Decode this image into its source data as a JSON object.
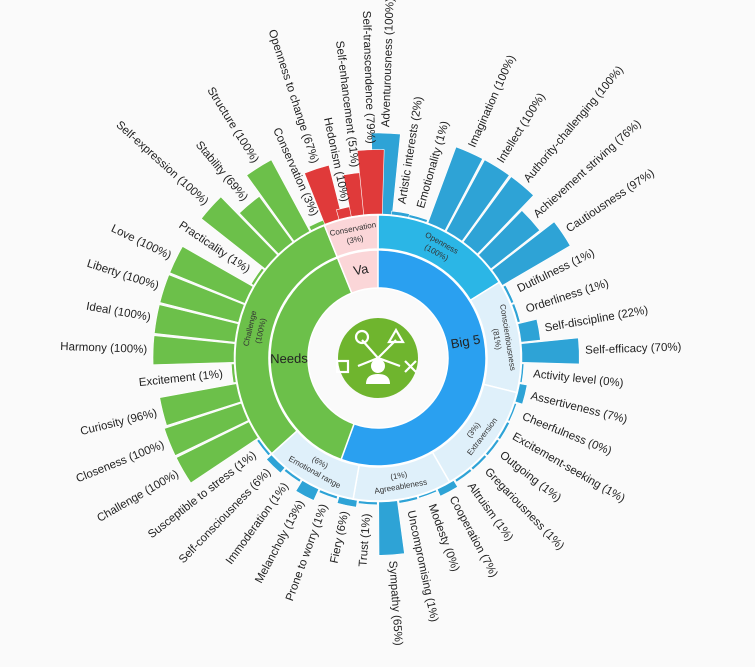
{
  "chart_data": {
    "type": "sunburst",
    "title": "",
    "colors": {
      "openness": "#2bb6e6",
      "big5_core": "#2aa0f0",
      "big5_light": "#dff0fa",
      "bar_blue": "#2ea3d6",
      "needs_green": "#6cc04a",
      "values_red": "#e03a3a",
      "values_pink": "#fbd6d8",
      "icon_bg": "#6fb52e",
      "icon_fg": "#ffffff",
      "divider": "#ffffff",
      "text": "#222222"
    },
    "core": [
      {
        "label": "Big 5",
        "start": -40,
        "end": 200,
        "color": "#2aa0f0"
      },
      {
        "label": "Needs",
        "start": 200,
        "end": 338,
        "color": "#6cc04a"
      },
      {
        "label": "Va",
        "start": 338,
        "end": 360,
        "color": "#fbd6d8"
      }
    ],
    "middle": [
      {
        "label": "Openness",
        "value": "(100%)",
        "start": 0,
        "end": 58,
        "color": "#2bb6e6"
      },
      {
        "label": "Conscientiousness",
        "value": "(81%)",
        "start": 58,
        "end": 104,
        "color": "#dff0fa"
      },
      {
        "label": "Extraversion",
        "value": "(3%)",
        "start": 104,
        "end": 150,
        "color": "#dff0fa"
      },
      {
        "label": "Agreeableness",
        "value": "(1%)",
        "start": 150,
        "end": 190,
        "color": "#dff0fa"
      },
      {
        "label": "Emotional range",
        "value": "(6%)",
        "start": 190,
        "end": 228,
        "color": "#dff0fa"
      },
      {
        "label": "Challenge",
        "value": "(100%)",
        "start": 228,
        "end": 338,
        "color": "#6cc04a"
      },
      {
        "label": "Conservation",
        "value": "(3%)",
        "start": 338,
        "end": 360,
        "color": "#fbd6d8"
      }
    ],
    "traits": [
      {
        "label": "Adventurousness (100%)",
        "value": 100,
        "angle": 2
      },
      {
        "label": "Artistic interests (2%)",
        "value": 2,
        "angle": 9
      },
      {
        "label": "Emotionality (1%)",
        "value": 1,
        "angle": 16
      },
      {
        "label": "Imagination (100%)",
        "value": 100,
        "angle": 24
      },
      {
        "label": "Intellect (100%)",
        "value": 100,
        "angle": 32
      },
      {
        "label": "Authority-challenging (100%)",
        "value": 100,
        "angle": 40
      },
      {
        "label": "Achievement striving (76%)",
        "value": 76,
        "angle": 48
      },
      {
        "label": "Cautiousness (97%)",
        "value": 97,
        "angle": 56
      },
      {
        "label": "Dutifulness (1%)",
        "value": 1,
        "angle": 64
      },
      {
        "label": "Orderliness (1%)",
        "value": 1,
        "angle": 72
      },
      {
        "label": "Self-discipline (22%)",
        "value": 22,
        "angle": 80
      },
      {
        "label": "Self-efficacy (70%)",
        "value": 70,
        "angle": 88
      },
      {
        "label": "Activity level (0%)",
        "value": 0,
        "angle": 96
      },
      {
        "label": "Assertiveness (7%)",
        "value": 7,
        "angle": 104
      },
      {
        "label": "Cheerfulness (0%)",
        "value": 0,
        "angle": 112
      },
      {
        "label": "Excitement-seeking (1%)",
        "value": 1,
        "angle": 120
      },
      {
        "label": "Outgoing (1%)",
        "value": 1,
        "angle": 128
      },
      {
        "label": "Gregariousness (1%)",
        "value": 1,
        "angle": 136
      },
      {
        "label": "Altruism (1%)",
        "value": 1,
        "angle": 144
      },
      {
        "label": "Cooperation (7%)",
        "value": 7,
        "angle": 152
      },
      {
        "label": "Modesty (0%)",
        "value": 0,
        "angle": 160
      },
      {
        "label": "Uncompromising (1%)",
        "value": 1,
        "angle": 168
      },
      {
        "label": "Sympathy (65%)",
        "value": 65,
        "angle": 176
      },
      {
        "label": "Trust (1%)",
        "value": 1,
        "angle": 184
      },
      {
        "label": "Fiery (6%)",
        "value": 6,
        "angle": 192
      },
      {
        "label": "Prone to worry (1%)",
        "value": 1,
        "angle": 200
      },
      {
        "label": "Melancholy (13%)",
        "value": 13,
        "angle": 208
      },
      {
        "label": "Immoderation (1%)",
        "value": 1,
        "angle": 216
      },
      {
        "label": "Self-consciousness (6%)",
        "value": 6,
        "angle": 224
      },
      {
        "label": "Susceptible to stress (1%)",
        "value": 1,
        "angle": 232
      },
      {
        "label": "Challenge (100%)",
        "value": 100,
        "angle": 240
      },
      {
        "label": "Closeness (100%)",
        "value": 100,
        "angle": 248
      },
      {
        "label": "Curiosity (96%)",
        "value": 96,
        "angle": 256
      },
      {
        "label": "Excitement (1%)",
        "value": 1,
        "angle": 264
      },
      {
        "label": "Harmony (100%)",
        "value": 100,
        "angle": 272
      },
      {
        "label": "Ideal (100%)",
        "value": 100,
        "angle": 280
      },
      {
        "label": "Liberty (100%)",
        "value": 100,
        "angle": 288
      },
      {
        "label": "Love (100%)",
        "value": 100,
        "angle": 296
      },
      {
        "label": "Practicality (1%)",
        "value": 1,
        "angle": 304
      },
      {
        "label": "Self-expression (100%)",
        "value": 100,
        "angle": 312
      },
      {
        "label": "Stability (69%)",
        "value": 69,
        "angle": 320
      },
      {
        "label": "Structure (100%)",
        "value": 100,
        "angle": 328
      },
      {
        "label": "Conservation (3%)",
        "value": 3,
        "angle": 336
      },
      {
        "label": "Openness to change (67%)",
        "value": 67,
        "angle": 342
      },
      {
        "label": "Hedonism (10%)",
        "value": 10,
        "angle": 348
      },
      {
        "label": "Self-enhancement (51%)",
        "value": 51,
        "angle": 353
      },
      {
        "label": "Self-transcendence (79%)",
        "value": 79,
        "angle": 358
      }
    ]
  }
}
